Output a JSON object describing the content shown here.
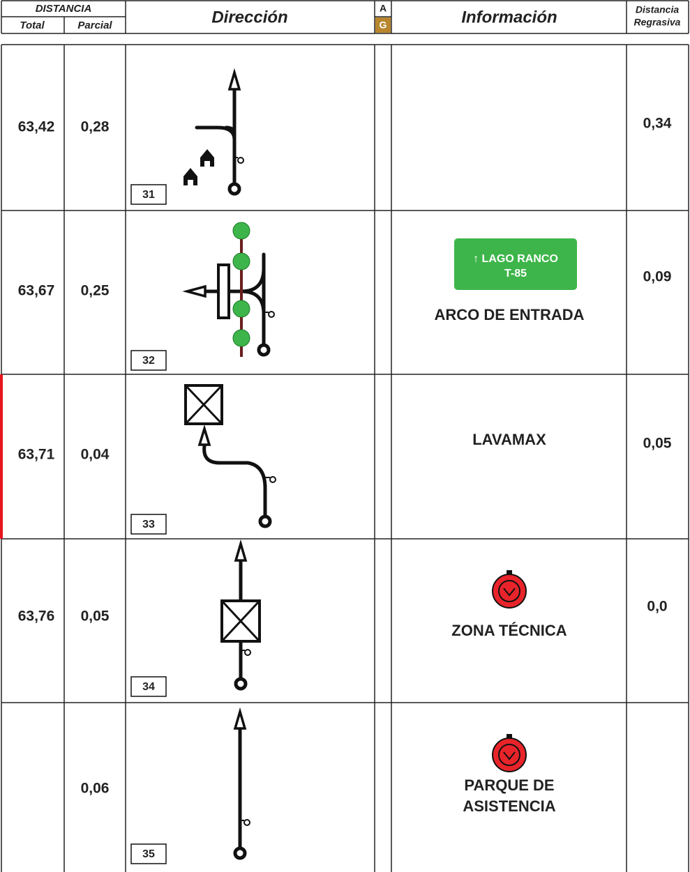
{
  "header": {
    "distancia": "DISTANCIA",
    "total": "Total",
    "parcial": "Parcial",
    "direccion": "Dirección",
    "a": "A",
    "g": "G",
    "informacion": "Información",
    "regresiva": [
      "Distancia",
      "Regrasiva"
    ]
  },
  "rows": [
    {
      "total": "63,42",
      "parcial": "0,28",
      "box": "31",
      "regresiva": "0,34"
    },
    {
      "total": "63,67",
      "parcial": "0,25",
      "box": "32",
      "sign": [
        "↑ LAGO RANCO",
        "T-85"
      ],
      "info": [
        "ARCO DE ENTRADA"
      ],
      "regresiva": "0,09"
    },
    {
      "total": "63,71",
      "parcial": "0,04",
      "box": "33",
      "info": [
        "LAVAMAX"
      ],
      "regresiva": "0,05"
    },
    {
      "total": "63,76",
      "parcial": "0,05",
      "box": "34",
      "info": [
        "ZONA TÉCNICA"
      ],
      "regresiva": "0,0"
    },
    {
      "parcial": "0,06",
      "box": "35",
      "info": [
        "PARQUE DE",
        "ASISTENCIA"
      ]
    }
  ]
}
